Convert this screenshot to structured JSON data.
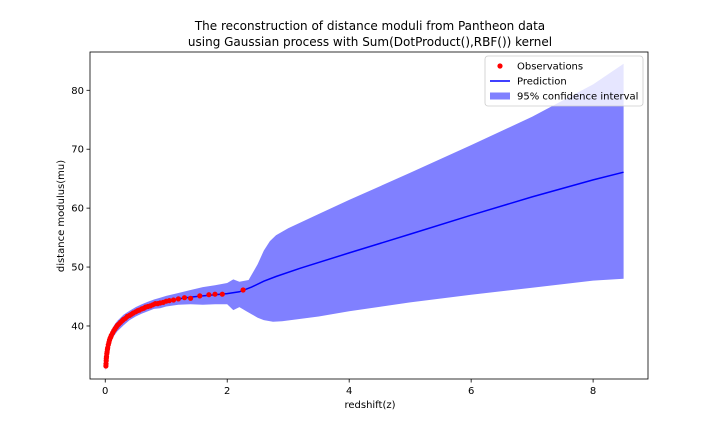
{
  "chart_data": {
    "type": "line",
    "title": "The reconstruction of distance moduli from Pantheon data",
    "subtitle": "using Gaussian process with Sum(DotProduct(),RBF()) kernel",
    "xlabel": "redshift(z)",
    "ylabel": "distance modulus(mu)",
    "xlim": [
      -0.25,
      8.9
    ],
    "ylim": [
      31.0,
      86.5
    ],
    "xticks": [
      0,
      2,
      4,
      6,
      8
    ],
    "yticks": [
      40,
      50,
      60,
      70,
      80
    ],
    "grid": false,
    "legend_position": "top-right",
    "series": [
      {
        "name": "Observations",
        "kind": "scatter",
        "color": "#ff0000",
        "points": [
          [
            0.01,
            33.2
          ],
          [
            0.012,
            33.6
          ],
          [
            0.015,
            34.1
          ],
          [
            0.018,
            34.5
          ],
          [
            0.02,
            34.8
          ],
          [
            0.025,
            35.3
          ],
          [
            0.03,
            35.6
          ],
          [
            0.035,
            36.0
          ],
          [
            0.04,
            36.3
          ],
          [
            0.05,
            36.8
          ],
          [
            0.06,
            37.2
          ],
          [
            0.07,
            37.6
          ],
          [
            0.08,
            37.9
          ],
          [
            0.09,
            38.1
          ],
          [
            0.1,
            38.4
          ],
          [
            0.12,
            38.8
          ],
          [
            0.14,
            39.2
          ],
          [
            0.16,
            39.5
          ],
          [
            0.18,
            39.8
          ],
          [
            0.2,
            40.1
          ],
          [
            0.22,
            40.3
          ],
          [
            0.25,
            40.6
          ],
          [
            0.28,
            40.9
          ],
          [
            0.3,
            41.1
          ],
          [
            0.33,
            41.3
          ],
          [
            0.36,
            41.6
          ],
          [
            0.4,
            41.8
          ],
          [
            0.43,
            42.0
          ],
          [
            0.46,
            42.2
          ],
          [
            0.5,
            42.4
          ],
          [
            0.53,
            42.6
          ],
          [
            0.56,
            42.7
          ],
          [
            0.6,
            42.9
          ],
          [
            0.63,
            43.0
          ],
          [
            0.66,
            43.2
          ],
          [
            0.7,
            43.3
          ],
          [
            0.74,
            43.4
          ],
          [
            0.78,
            43.6
          ],
          [
            0.82,
            43.8
          ],
          [
            0.86,
            43.8
          ],
          [
            0.9,
            43.9
          ],
          [
            0.95,
            44.0
          ],
          [
            1.0,
            44.2
          ],
          [
            1.05,
            44.3
          ],
          [
            1.12,
            44.4
          ],
          [
            1.2,
            44.6
          ],
          [
            1.3,
            44.8
          ],
          [
            1.4,
            44.7
          ],
          [
            1.55,
            45.1
          ],
          [
            1.7,
            45.3
          ],
          [
            1.8,
            45.4
          ],
          [
            1.92,
            45.4
          ],
          [
            2.26,
            46.1
          ]
        ]
      },
      {
        "name": "Prediction",
        "kind": "line",
        "color": "#0000ff",
        "points": [
          [
            0.0,
            33.6
          ],
          [
            0.02,
            34.8
          ],
          [
            0.05,
            36.8
          ],
          [
            0.1,
            38.4
          ],
          [
            0.15,
            39.3
          ],
          [
            0.2,
            40.0
          ],
          [
            0.3,
            41.0
          ],
          [
            0.4,
            41.8
          ],
          [
            0.5,
            42.4
          ],
          [
            0.6,
            42.9
          ],
          [
            0.7,
            43.3
          ],
          [
            0.8,
            43.7
          ],
          [
            0.9,
            43.9
          ],
          [
            1.0,
            44.2
          ],
          [
            1.2,
            44.6
          ],
          [
            1.4,
            44.9
          ],
          [
            1.6,
            45.1
          ],
          [
            1.8,
            45.3
          ],
          [
            2.0,
            45.5
          ],
          [
            2.2,
            45.8
          ],
          [
            2.4,
            46.6
          ],
          [
            2.6,
            47.6
          ],
          [
            2.8,
            48.4
          ],
          [
            3.2,
            49.8
          ],
          [
            4.0,
            52.4
          ],
          [
            5.0,
            55.6
          ],
          [
            6.0,
            58.8
          ],
          [
            7.0,
            61.9
          ],
          [
            8.0,
            64.8
          ],
          [
            8.5,
            66.1
          ]
        ]
      },
      {
        "name": "95% confidence interval",
        "kind": "band",
        "color": "#8080ff",
        "upper": [
          [
            0.0,
            34.8
          ],
          [
            0.02,
            35.9
          ],
          [
            0.05,
            37.8
          ],
          [
            0.1,
            39.3
          ],
          [
            0.15,
            40.2
          ],
          [
            0.2,
            40.9
          ],
          [
            0.3,
            41.9
          ],
          [
            0.4,
            42.6
          ],
          [
            0.5,
            43.2
          ],
          [
            0.6,
            43.7
          ],
          [
            0.7,
            44.1
          ],
          [
            0.8,
            44.5
          ],
          [
            0.9,
            44.8
          ],
          [
            1.0,
            45.1
          ],
          [
            1.2,
            45.6
          ],
          [
            1.4,
            46.1
          ],
          [
            1.6,
            46.6
          ],
          [
            1.8,
            46.9
          ],
          [
            2.0,
            47.3
          ],
          [
            2.1,
            47.9
          ],
          [
            2.2,
            47.5
          ],
          [
            2.35,
            47.8
          ],
          [
            2.5,
            50.5
          ],
          [
            2.6,
            52.8
          ],
          [
            2.7,
            54.4
          ],
          [
            2.8,
            55.4
          ],
          [
            3.0,
            56.6
          ],
          [
            3.5,
            59.0
          ],
          [
            4.0,
            61.4
          ],
          [
            5.0,
            66.0
          ],
          [
            6.0,
            70.7
          ],
          [
            7.0,
            75.5
          ],
          [
            8.0,
            81.0
          ],
          [
            8.5,
            84.5
          ]
        ],
        "lower": [
          [
            0.0,
            32.4
          ],
          [
            0.02,
            33.7
          ],
          [
            0.05,
            35.8
          ],
          [
            0.1,
            37.5
          ],
          [
            0.15,
            38.4
          ],
          [
            0.2,
            39.1
          ],
          [
            0.3,
            40.1
          ],
          [
            0.4,
            41.0
          ],
          [
            0.5,
            41.6
          ],
          [
            0.6,
            42.1
          ],
          [
            0.7,
            42.5
          ],
          [
            0.8,
            42.9
          ],
          [
            0.9,
            43.0
          ],
          [
            1.0,
            43.3
          ],
          [
            1.2,
            43.6
          ],
          [
            1.4,
            43.7
          ],
          [
            1.6,
            43.6
          ],
          [
            1.8,
            43.7
          ],
          [
            2.0,
            43.7
          ],
          [
            2.1,
            42.7
          ],
          [
            2.2,
            43.2
          ],
          [
            2.3,
            42.6
          ],
          [
            2.4,
            42.0
          ],
          [
            2.5,
            41.4
          ],
          [
            2.6,
            41.0
          ],
          [
            2.75,
            40.7
          ],
          [
            2.9,
            40.8
          ],
          [
            3.5,
            41.6
          ],
          [
            4.0,
            42.5
          ],
          [
            5.0,
            44.0
          ],
          [
            6.0,
            45.3
          ],
          [
            7.0,
            46.5
          ],
          [
            8.0,
            47.7
          ],
          [
            8.5,
            48.0
          ]
        ]
      }
    ]
  }
}
